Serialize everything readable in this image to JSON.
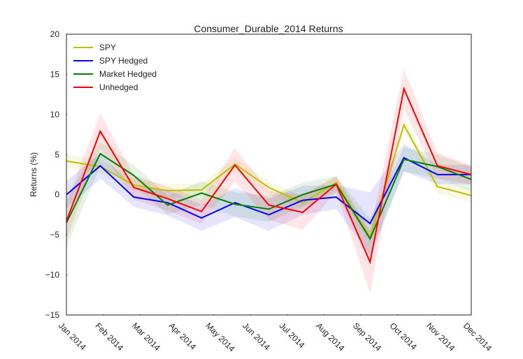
{
  "chart_data": {
    "type": "line",
    "title": "Consumer_Durable_2014 Returns",
    "y_label": "Returns (%)",
    "x": [
      0,
      0.92,
      1.83,
      2.75,
      3.67,
      4.58,
      5.5,
      6.42,
      7.33,
      8.25,
      9.17,
      10.08,
      11
    ],
    "xlim": [
      0,
      11
    ],
    "xticks": [
      {
        "value": 0,
        "label": "Jan 2014"
      },
      {
        "value": 1,
        "label": "Feb 2014"
      },
      {
        "value": 2,
        "label": "Mar 2014"
      },
      {
        "value": 3,
        "label": "Apr 2014"
      },
      {
        "value": 4,
        "label": "May 2014"
      },
      {
        "value": 5,
        "label": "Jun 2014"
      },
      {
        "value": 6,
        "label": "Jul 2014"
      },
      {
        "value": 7,
        "label": "Aug 2014"
      },
      {
        "value": 8,
        "label": "Sep 2014"
      },
      {
        "value": 9,
        "label": "Oct 2014"
      },
      {
        "value": 10,
        "label": "Nov 2014"
      },
      {
        "value": 11,
        "label": "Dec 2014"
      }
    ],
    "ylim": [
      -15,
      20
    ],
    "yticks": [
      {
        "value": -15,
        "label": "−15"
      },
      {
        "value": -10,
        "label": "−10"
      },
      {
        "value": -5,
        "label": "−5"
      },
      0,
      5,
      10,
      15,
      20
    ],
    "legend": "upper left",
    "series": [
      {
        "name": "SPY",
        "color": "#bfbf00",
        "values": [
          4.2,
          3.5,
          1.2,
          0.5,
          0.6,
          3.8,
          0.9,
          -1.0,
          1.5,
          -5.3,
          8.7,
          1.0,
          -0.1
        ],
        "errors": [
          0.8,
          0.8,
          0.8,
          0.8,
          0.8,
          0.8,
          0.8,
          0.8,
          0.8,
          0.8,
          0.8,
          0.8,
          0.8
        ]
      },
      {
        "name": "SPY Hedged",
        "color": "#0000ff",
        "values": [
          0,
          3.6,
          -0.3,
          -1.0,
          -2.9,
          -1.0,
          -2.5,
          -0.7,
          -0.3,
          -3.6,
          4.6,
          2.5,
          2.5
        ],
        "errors": [
          1.7,
          1.6,
          1.2,
          1.6,
          1.6,
          1.8,
          2.0,
          1.8,
          1.5,
          3.9,
          1.7,
          1.2,
          1.2
        ]
      },
      {
        "name": "Market Hedged",
        "color": "#008000",
        "values": [
          -3.5,
          5.1,
          2.4,
          -1.3,
          0.2,
          -1.2,
          -1.8,
          0.0,
          1.3,
          -5.5,
          4.4,
          3.5,
          1.9
        ],
        "errors": [
          3.0,
          1.5,
          1.3,
          1.2,
          1.5,
          1.5,
          1.6,
          1.5,
          1.0,
          2.5,
          1.5,
          1.5,
          1.5
        ]
      },
      {
        "name": "Unhedged",
        "color": "#ff0000",
        "values": [
          -3.3,
          7.9,
          0.9,
          -0.5,
          -2.1,
          3.7,
          -1.3,
          -2.2,
          1.3,
          -8.4,
          13.2,
          3.6,
          2.5
        ],
        "errors": [
          2.3,
          2.2,
          1.5,
          1.5,
          1.5,
          2.1,
          1.8,
          2.2,
          1.0,
          3.9,
          2.5,
          1.6,
          1.2
        ]
      }
    ]
  }
}
